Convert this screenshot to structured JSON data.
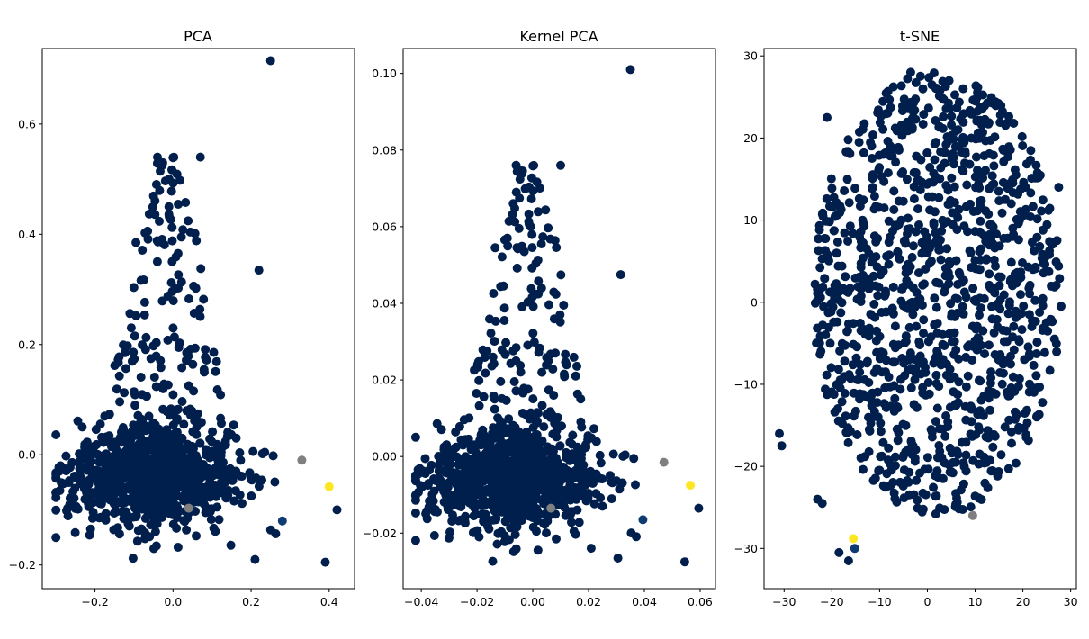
{
  "figure": {
    "background": "#ffffff"
  },
  "colors": {
    "main": "#001f4d",
    "grey": "#7f7f7f",
    "yellow": "#fde725",
    "blue": "#0f3b73"
  },
  "chart_data": [
    {
      "type": "scatter",
      "title": "PCA",
      "xlabel": "",
      "ylabel": "",
      "xlim": [
        -0.335,
        0.465
      ],
      "ylim": [
        -0.243,
        0.737
      ],
      "xticks": [
        -0.2,
        0.0,
        0.2,
        0.4
      ],
      "xtick_labels": [
        "−0.2",
        "0.0",
        "0.2",
        "0.4"
      ],
      "yticks": [
        -0.2,
        0.0,
        0.2,
        0.4,
        0.6
      ],
      "ytick_labels": [
        "−0.2",
        "0.0",
        "0.2",
        "0.4",
        "0.6"
      ],
      "grid": false,
      "legend": "none",
      "cluster": {
        "count": 1100,
        "x_min": -0.3,
        "x_max": 0.42,
        "y_min": -0.2,
        "y_max": 0.54,
        "center": [
          -0.05,
          -0.04
        ],
        "spread": [
          0.11,
          0.045
        ],
        "seed": 7
      },
      "points": [
        {
          "x": 0.25,
          "y": 0.715,
          "color": "#001f4d"
        },
        {
          "x": 0.33,
          "y": -0.01,
          "color": "#7f7f7f"
        },
        {
          "x": 0.04,
          "y": -0.097,
          "color": "#7f7f7f"
        },
        {
          "x": 0.4,
          "y": -0.058,
          "color": "#fde725"
        },
        {
          "x": 0.28,
          "y": -0.12,
          "color": "#0f3b73"
        },
        {
          "x": 0.42,
          "y": -0.1,
          "color": "#001f4d"
        },
        {
          "x": 0.39,
          "y": -0.195,
          "color": "#001f4d"
        },
        {
          "x": -0.04,
          "y": 0.54,
          "color": "#001f4d"
        },
        {
          "x": 0.07,
          "y": 0.54,
          "color": "#001f4d"
        },
        {
          "x": -0.095,
          "y": 0.385,
          "color": "#001f4d"
        },
        {
          "x": 0.22,
          "y": 0.335,
          "color": "#001f4d"
        },
        {
          "x": 0.21,
          "y": -0.19,
          "color": "#001f4d"
        },
        {
          "x": -0.29,
          "y": -0.065,
          "color": "#001f4d"
        }
      ]
    },
    {
      "type": "scatter",
      "title": "Kernel PCA",
      "xlabel": "",
      "ylabel": "",
      "xlim": [
        -0.0465,
        0.0655
      ],
      "ylim": [
        -0.0345,
        0.1065
      ],
      "xticks": [
        -0.04,
        -0.02,
        0.0,
        0.02,
        0.04,
        0.06
      ],
      "xtick_labels": [
        "−0.04",
        "−0.02",
        "0.00",
        "0.02",
        "0.04",
        "0.06"
      ],
      "yticks": [
        -0.02,
        0.0,
        0.02,
        0.04,
        0.06,
        0.08,
        0.1
      ],
      "ytick_labels": [
        "−0.02",
        "0.00",
        "0.02",
        "0.04",
        "0.06",
        "0.08",
        "0.10"
      ],
      "grid": false,
      "legend": "none",
      "cluster": {
        "count": 1100,
        "x_min": -0.042,
        "x_max": 0.06,
        "y_min": -0.028,
        "y_max": 0.076,
        "center": [
          -0.007,
          -0.006
        ],
        "spread": [
          0.0155,
          0.0065
        ],
        "seed": 7
      },
      "points": [
        {
          "x": 0.035,
          "y": 0.101,
          "color": "#001f4d"
        },
        {
          "x": 0.047,
          "y": -0.0015,
          "color": "#7f7f7f"
        },
        {
          "x": 0.0065,
          "y": -0.0135,
          "color": "#7f7f7f"
        },
        {
          "x": 0.0565,
          "y": -0.0075,
          "color": "#fde725"
        },
        {
          "x": 0.0395,
          "y": -0.0165,
          "color": "#0f3b73"
        },
        {
          "x": 0.0595,
          "y": -0.0135,
          "color": "#001f4d"
        },
        {
          "x": 0.0545,
          "y": -0.0275,
          "color": "#001f4d"
        },
        {
          "x": -0.006,
          "y": 0.076,
          "color": "#001f4d"
        },
        {
          "x": 0.01,
          "y": 0.076,
          "color": "#001f4d"
        },
        {
          "x": -0.0135,
          "y": 0.0545,
          "color": "#001f4d"
        },
        {
          "x": 0.0315,
          "y": 0.0475,
          "color": "#001f4d"
        },
        {
          "x": 0.0305,
          "y": -0.0265,
          "color": "#001f4d"
        },
        {
          "x": -0.041,
          "y": -0.0093,
          "color": "#001f4d"
        }
      ]
    },
    {
      "type": "scatter",
      "title": "t-SNE",
      "xlabel": "",
      "ylabel": "",
      "xlim": [
        -34.2,
        31.2
      ],
      "ylim": [
        -34.9,
        30.9
      ],
      "xticks": [
        -30,
        -20,
        -10,
        0,
        10,
        20,
        30
      ],
      "xtick_labels": [
        "−30",
        "−20",
        "−10",
        "0",
        "10",
        "20",
        "30"
      ],
      "yticks": [
        -30,
        -20,
        -10,
        0,
        10,
        20,
        30
      ],
      "ytick_labels": [
        "−30",
        "−20",
        "−10",
        "0",
        "10",
        "20",
        "30"
      ],
      "grid": false,
      "legend": "none",
      "cluster": {
        "count": 1150,
        "center": [
          2,
          1
        ],
        "radius_x": 26,
        "radius_y": 27,
        "seed": 11
      },
      "points": [
        {
          "x": -15.5,
          "y": -28.8,
          "color": "#fde725"
        },
        {
          "x": -15.2,
          "y": -30.0,
          "color": "#0f3b73"
        },
        {
          "x": 9.5,
          "y": -26.0,
          "color": "#7f7f7f"
        },
        {
          "x": -31.0,
          "y": -16.0,
          "color": "#001f4d"
        },
        {
          "x": -30.5,
          "y": -17.5,
          "color": "#001f4d"
        },
        {
          "x": -22.0,
          "y": -24.5,
          "color": "#001f4d"
        },
        {
          "x": -23.0,
          "y": -24.0,
          "color": "#001f4d"
        },
        {
          "x": -16.5,
          "y": -31.5,
          "color": "#001f4d"
        },
        {
          "x": -18.5,
          "y": -30.5,
          "color": "#001f4d"
        },
        {
          "x": 27.5,
          "y": 14.0,
          "color": "#001f4d"
        },
        {
          "x": -3.5,
          "y": 28.0,
          "color": "#001f4d"
        },
        {
          "x": -21.0,
          "y": 22.5,
          "color": "#001f4d"
        },
        {
          "x": 28.0,
          "y": -0.5,
          "color": "#001f4d"
        }
      ]
    }
  ]
}
